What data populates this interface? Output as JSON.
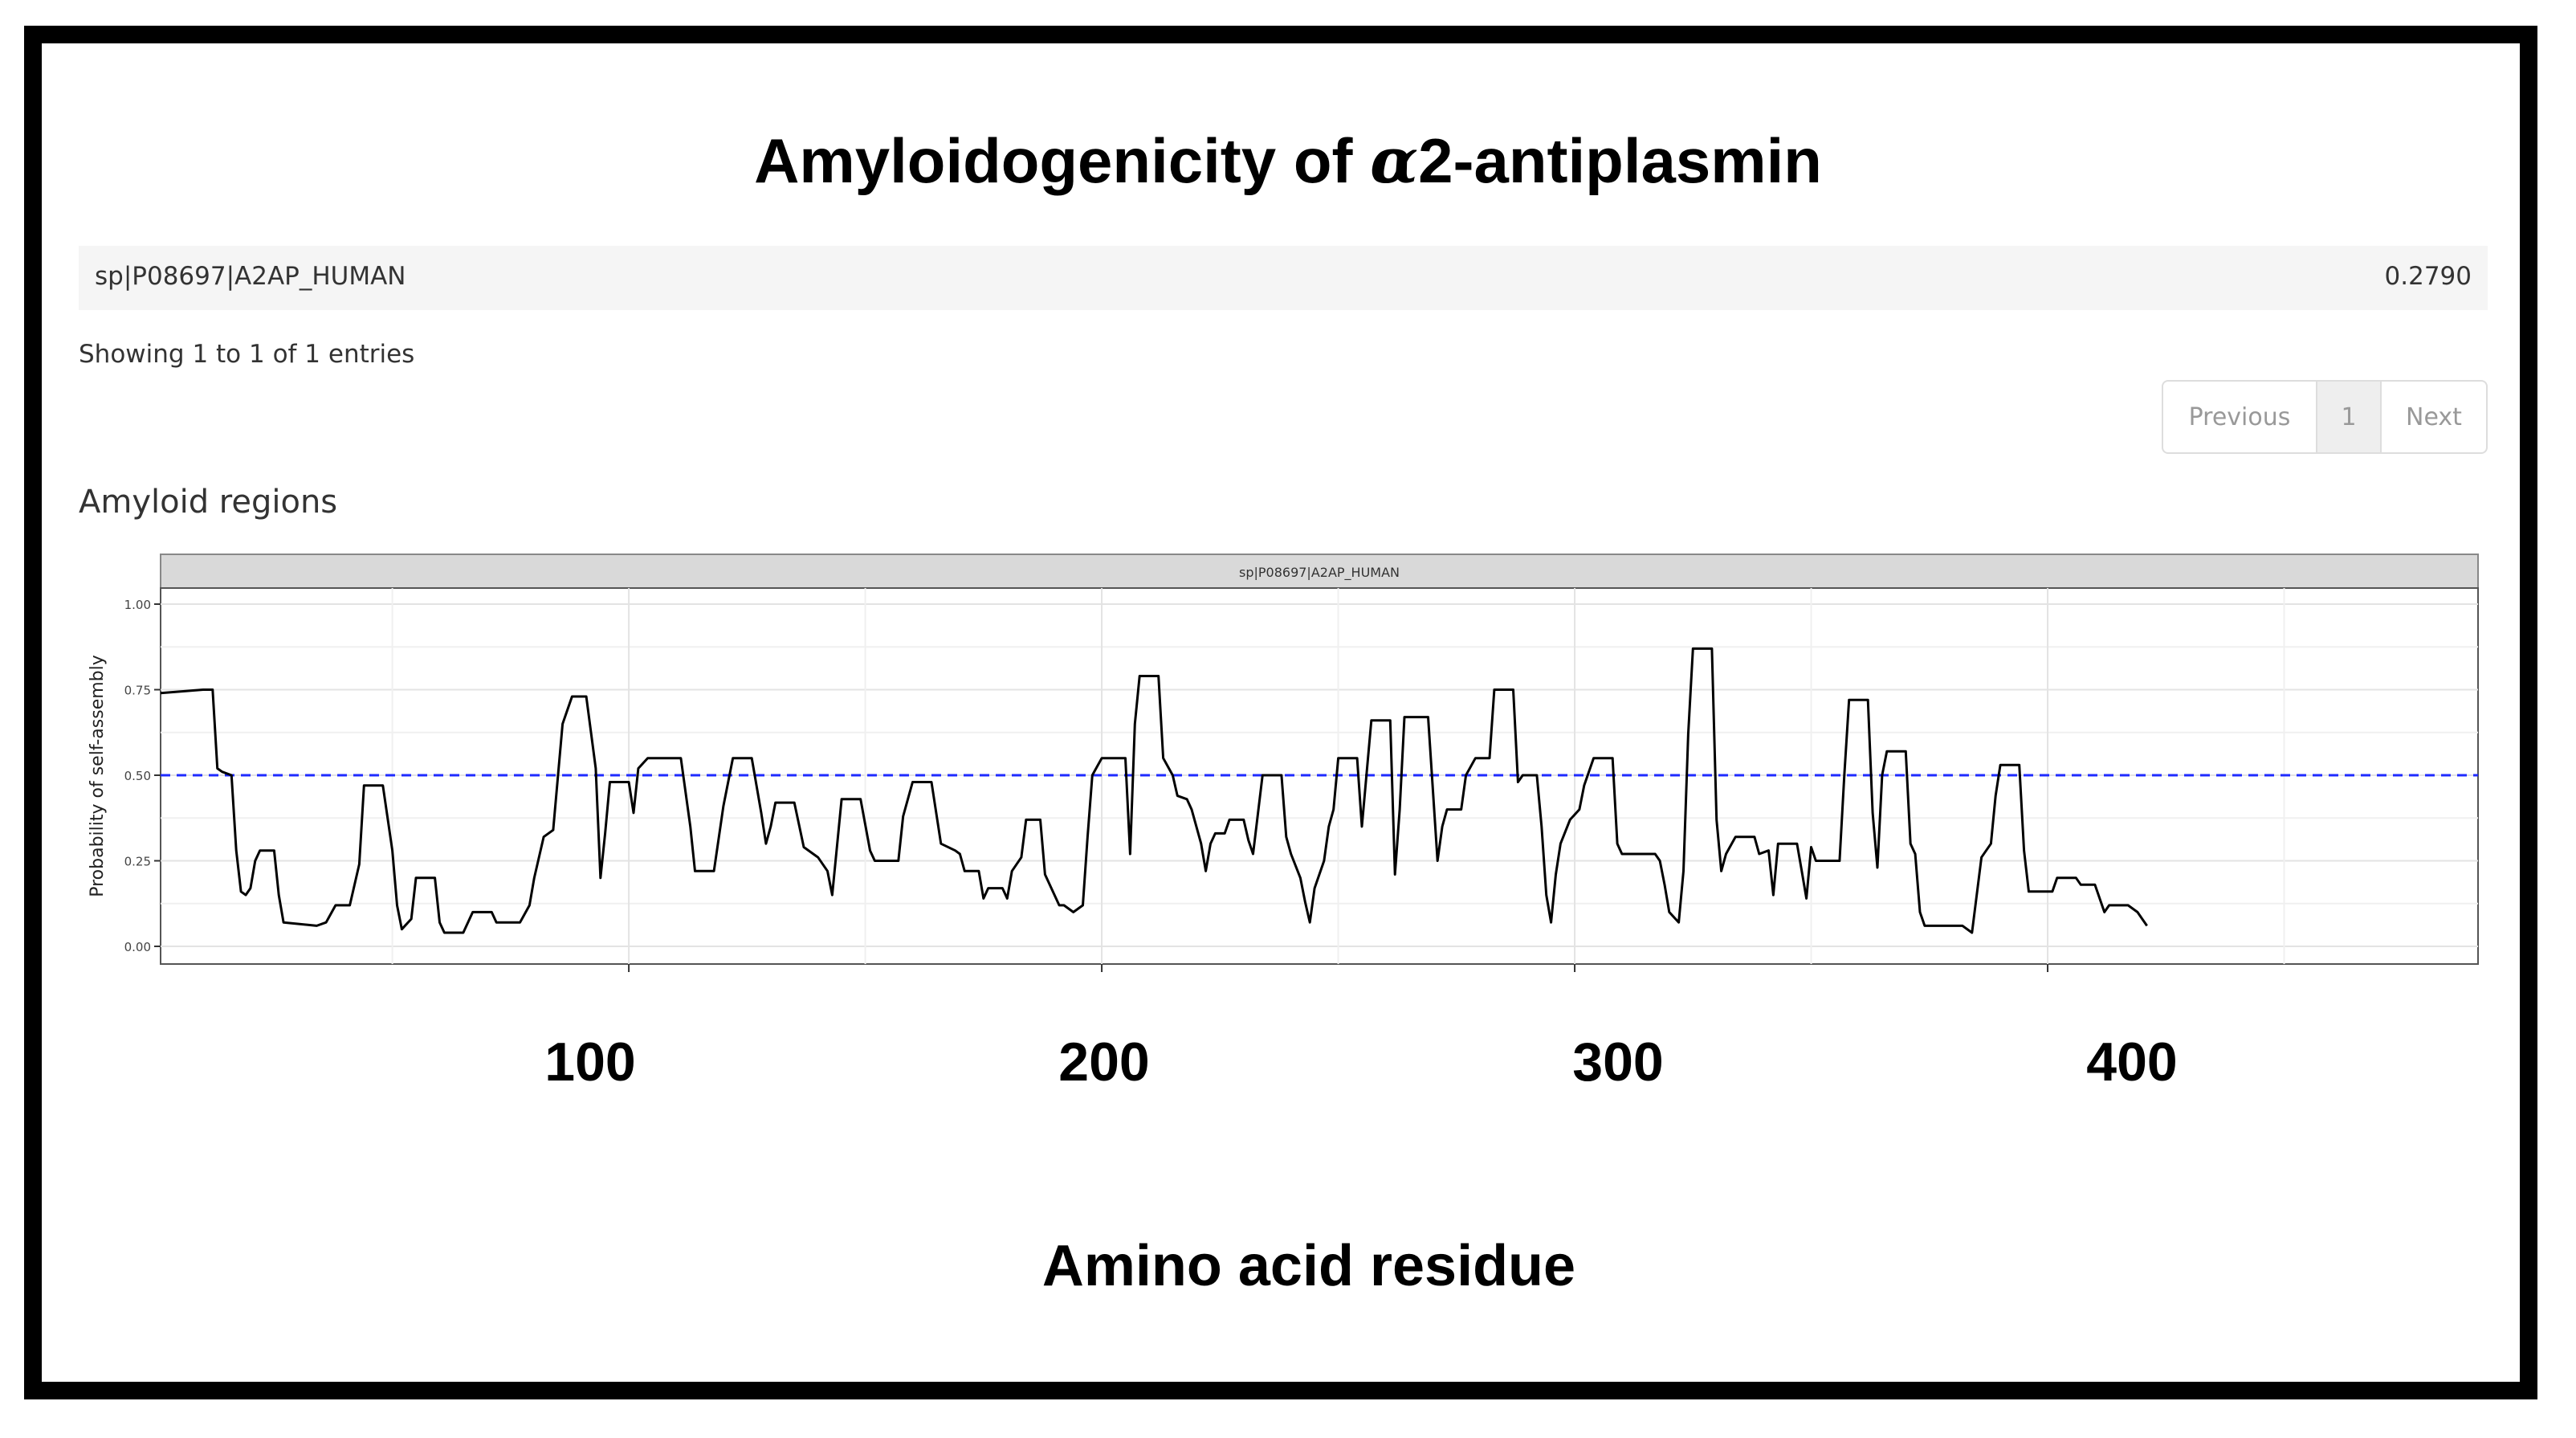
{
  "title": {
    "prefix": "Amyloidogenicity of ",
    "alpha": "α",
    "suffix": "2-antiplasmin"
  },
  "result": {
    "id": "sp|P08697|A2AP_HUMAN",
    "score": "0.2790"
  },
  "table_info": "Showing 1 to 1 of 1 entries",
  "pagination": {
    "previous": "Previous",
    "current": "1",
    "next": "Next"
  },
  "section_title": "Amyloid regions",
  "colors": {
    "threshold_line": "#1f2bff",
    "series_line": "#000000",
    "strip_fill": "#d9d9d9",
    "page_frame": "#000000"
  },
  "chart_data": {
    "type": "line",
    "strip_label": "sp|P08697|A2AP_HUMAN",
    "ylabel": "Probability of self-assembly",
    "xlabel": "Amino acid residue",
    "ylim": [
      0,
      1.05
    ],
    "xlim": [
      1,
      491
    ],
    "y_ticks": [
      "0.00",
      "0.25",
      "0.50",
      "0.75",
      "1.00"
    ],
    "x_ticks": [
      100,
      200,
      300,
      400
    ],
    "threshold": 0.5,
    "grid": true,
    "series": [
      {
        "points": [
          [
            1,
            0.74
          ],
          [
            10,
            0.75
          ],
          [
            12,
            0.75
          ],
          [
            13,
            0.52
          ],
          [
            14,
            0.51
          ],
          [
            16,
            0.5
          ],
          [
            17,
            0.28
          ],
          [
            18,
            0.16
          ],
          [
            19,
            0.15
          ],
          [
            20,
            0.17
          ],
          [
            21,
            0.25
          ],
          [
            22,
            0.28
          ],
          [
            25,
            0.28
          ],
          [
            26,
            0.15
          ],
          [
            27,
            0.07
          ],
          [
            34,
            0.06
          ],
          [
            36,
            0.07
          ],
          [
            38,
            0.12
          ],
          [
            41,
            0.12
          ],
          [
            43,
            0.24
          ],
          [
            44,
            0.47
          ],
          [
            48,
            0.47
          ],
          [
            50,
            0.28
          ],
          [
            51,
            0.12
          ],
          [
            52,
            0.05
          ],
          [
            54,
            0.08
          ],
          [
            55,
            0.2
          ],
          [
            59,
            0.2
          ],
          [
            60,
            0.07
          ],
          [
            61,
            0.04
          ],
          [
            65,
            0.04
          ],
          [
            67,
            0.1
          ],
          [
            71,
            0.1
          ],
          [
            72,
            0.07
          ],
          [
            77,
            0.07
          ],
          [
            79,
            0.12
          ],
          [
            80,
            0.2
          ],
          [
            82,
            0.32
          ],
          [
            84,
            0.34
          ],
          [
            86,
            0.65
          ],
          [
            88,
            0.73
          ],
          [
            91,
            0.73
          ],
          [
            93,
            0.52
          ],
          [
            94,
            0.2
          ],
          [
            95,
            0.33
          ],
          [
            96,
            0.48
          ],
          [
            100,
            0.48
          ],
          [
            101,
            0.39
          ],
          [
            102,
            0.52
          ],
          [
            104,
            0.55
          ],
          [
            111,
            0.55
          ],
          [
            113,
            0.35
          ],
          [
            114,
            0.22
          ],
          [
            118,
            0.22
          ],
          [
            120,
            0.41
          ],
          [
            122,
            0.55
          ],
          [
            126,
            0.55
          ],
          [
            128,
            0.39
          ],
          [
            129,
            0.3
          ],
          [
            130,
            0.35
          ],
          [
            131,
            0.42
          ],
          [
            135,
            0.42
          ],
          [
            137,
            0.29
          ],
          [
            140,
            0.26
          ],
          [
            142,
            0.22
          ],
          [
            143,
            0.15
          ],
          [
            145,
            0.43
          ],
          [
            149,
            0.43
          ],
          [
            151,
            0.28
          ],
          [
            152,
            0.25
          ],
          [
            157,
            0.25
          ],
          [
            158,
            0.38
          ],
          [
            160,
            0.48
          ],
          [
            164,
            0.48
          ],
          [
            166,
            0.3
          ],
          [
            169,
            0.28
          ],
          [
            170,
            0.27
          ],
          [
            171,
            0.22
          ],
          [
            174,
            0.22
          ],
          [
            175,
            0.14
          ],
          [
            176,
            0.17
          ],
          [
            179,
            0.17
          ],
          [
            180,
            0.14
          ],
          [
            181,
            0.22
          ],
          [
            183,
            0.26
          ],
          [
            184,
            0.37
          ],
          [
            187,
            0.37
          ],
          [
            188,
            0.21
          ],
          [
            191,
            0.12
          ],
          [
            192,
            0.12
          ],
          [
            194,
            0.1
          ],
          [
            196,
            0.12
          ],
          [
            197,
            0.32
          ],
          [
            198,
            0.5
          ],
          [
            200,
            0.55
          ],
          [
            205,
            0.55
          ],
          [
            206,
            0.27
          ],
          [
            207,
            0.65
          ],
          [
            208,
            0.79
          ],
          [
            212,
            0.79
          ],
          [
            213,
            0.55
          ],
          [
            215,
            0.5
          ],
          [
            216,
            0.44
          ],
          [
            218,
            0.43
          ],
          [
            219,
            0.4
          ],
          [
            221,
            0.3
          ],
          [
            222,
            0.22
          ],
          [
            223,
            0.3
          ],
          [
            224,
            0.33
          ],
          [
            226,
            0.33
          ],
          [
            227,
            0.37
          ],
          [
            230,
            0.37
          ],
          [
            231,
            0.31
          ],
          [
            232,
            0.27
          ],
          [
            234,
            0.5
          ],
          [
            238,
            0.5
          ],
          [
            239,
            0.32
          ],
          [
            240,
            0.27
          ],
          [
            242,
            0.2
          ],
          [
            243,
            0.13
          ],
          [
            244,
            0.07
          ],
          [
            245,
            0.17
          ],
          [
            247,
            0.25
          ],
          [
            248,
            0.35
          ],
          [
            249,
            0.4
          ],
          [
            250,
            0.55
          ],
          [
            254,
            0.55
          ],
          [
            255,
            0.35
          ],
          [
            257,
            0.66
          ],
          [
            261,
            0.66
          ],
          [
            262,
            0.21
          ],
          [
            263,
            0.4
          ],
          [
            264,
            0.67
          ],
          [
            269,
            0.67
          ],
          [
            271,
            0.25
          ],
          [
            272,
            0.35
          ],
          [
            273,
            0.4
          ],
          [
            276,
            0.4
          ],
          [
            277,
            0.5
          ],
          [
            279,
            0.55
          ],
          [
            282,
            0.55
          ],
          [
            283,
            0.75
          ],
          [
            287,
            0.75
          ],
          [
            288,
            0.48
          ],
          [
            289,
            0.5
          ],
          [
            292,
            0.5
          ],
          [
            293,
            0.35
          ],
          [
            294,
            0.15
          ],
          [
            295,
            0.07
          ],
          [
            296,
            0.21
          ],
          [
            297,
            0.3
          ],
          [
            299,
            0.37
          ],
          [
            301,
            0.4
          ],
          [
            302,
            0.47
          ],
          [
            304,
            0.55
          ],
          [
            308,
            0.55
          ],
          [
            309,
            0.3
          ],
          [
            310,
            0.27
          ],
          [
            317,
            0.27
          ],
          [
            318,
            0.25
          ],
          [
            319,
            0.18
          ],
          [
            320,
            0.1
          ],
          [
            322,
            0.07
          ],
          [
            323,
            0.22
          ],
          [
            324,
            0.62
          ],
          [
            325,
            0.87
          ],
          [
            329,
            0.87
          ],
          [
            330,
            0.37
          ],
          [
            331,
            0.22
          ],
          [
            332,
            0.27
          ],
          [
            334,
            0.32
          ],
          [
            338,
            0.32
          ],
          [
            339,
            0.27
          ],
          [
            341,
            0.28
          ],
          [
            342,
            0.15
          ],
          [
            343,
            0.3
          ],
          [
            347,
            0.3
          ],
          [
            348,
            0.22
          ],
          [
            349,
            0.14
          ],
          [
            350,
            0.29
          ],
          [
            351,
            0.25
          ],
          [
            356,
            0.25
          ],
          [
            357,
            0.5
          ],
          [
            358,
            0.72
          ],
          [
            362,
            0.72
          ],
          [
            363,
            0.39
          ],
          [
            364,
            0.23
          ],
          [
            365,
            0.5
          ],
          [
            366,
            0.57
          ],
          [
            370,
            0.57
          ],
          [
            371,
            0.3
          ],
          [
            372,
            0.27
          ],
          [
            373,
            0.1
          ],
          [
            374,
            0.06
          ],
          [
            382,
            0.06
          ],
          [
            384,
            0.04
          ],
          [
            386,
            0.26
          ],
          [
            388,
            0.3
          ],
          [
            389,
            0.44
          ],
          [
            390,
            0.53
          ],
          [
            394,
            0.53
          ],
          [
            395,
            0.28
          ],
          [
            396,
            0.16
          ],
          [
            397,
            0.16
          ],
          [
            401,
            0.16
          ],
          [
            402,
            0.2
          ],
          [
            406,
            0.2
          ],
          [
            407,
            0.18
          ],
          [
            410,
            0.18
          ],
          [
            412,
            0.1
          ],
          [
            413,
            0.12
          ],
          [
            417,
            0.12
          ],
          [
            419,
            0.1
          ],
          [
            421,
            0.06
          ]
        ]
      }
    ]
  }
}
